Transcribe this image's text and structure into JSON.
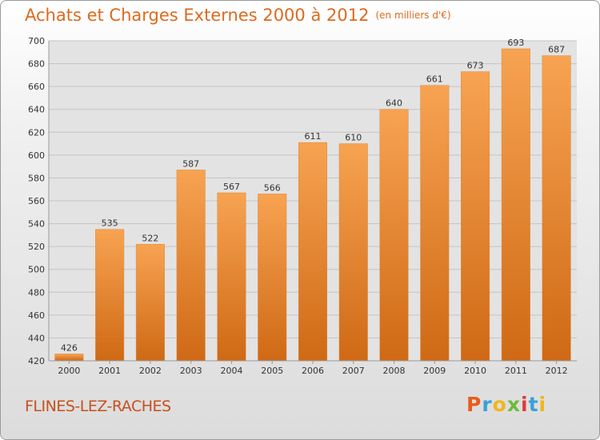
{
  "header": {
    "title": "Achats et Charges Externes 2000 à 2012",
    "subtitle": "(en milliers d'€)"
  },
  "footer": {
    "city": "FLINES-LEZ-RACHES",
    "brand": "Proxiti"
  },
  "colors": {
    "title": "#dd6a1f",
    "bar_light": "#f7a352",
    "bar_dark": "#cf6915",
    "brand_letters": [
      "#e85c1c",
      "#3aa0d8",
      "#f0b61d",
      "#6cbb3c",
      "#e03b3b",
      "#3aa0d8",
      "#f0b61d"
    ]
  },
  "chart_data": {
    "type": "bar",
    "categories": [
      "2000",
      "2001",
      "2002",
      "2003",
      "2004",
      "2005",
      "2006",
      "2007",
      "2008",
      "2009",
      "2010",
      "2011",
      "2012"
    ],
    "values": [
      426,
      535,
      522,
      587,
      567,
      566,
      611,
      610,
      640,
      661,
      673,
      693,
      687
    ],
    "title": "Achats et Charges Externes 2000 à 2012",
    "subtitle": "(en milliers d'€)",
    "ylim": [
      420,
      700
    ],
    "yticks": [
      420,
      440,
      460,
      480,
      500,
      520,
      540,
      560,
      580,
      600,
      620,
      640,
      660,
      680,
      700
    ],
    "grid": true,
    "data_labels": true
  }
}
